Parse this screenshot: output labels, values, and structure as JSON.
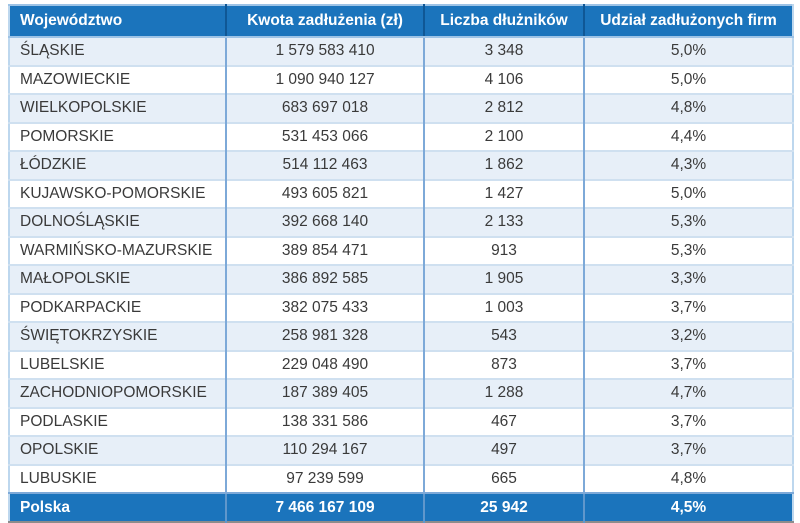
{
  "chart_data": {
    "type": "table",
    "columns": [
      {
        "label": "Województwo"
      },
      {
        "label": "Kwota zadłużenia (zł)"
      },
      {
        "label": "Liczba dłużników"
      },
      {
        "label": "Udział zadłużonych firm"
      }
    ],
    "rows": [
      {
        "region": "ŚLĄSKIE",
        "amount": "1 579 583 410",
        "debtors": "3 348",
        "share": "5,0%"
      },
      {
        "region": "MAZOWIECKIE",
        "amount": "1 090 940 127",
        "debtors": "4 106",
        "share": "5,0%"
      },
      {
        "region": "WIELKOPOLSKIE",
        "amount": "683 697 018",
        "debtors": "2 812",
        "share": "4,8%"
      },
      {
        "region": "POMORSKIE",
        "amount": "531 453 066",
        "debtors": "2 100",
        "share": "4,4%"
      },
      {
        "region": "ŁÓDZKIE",
        "amount": "514 112 463",
        "debtors": "1 862",
        "share": "4,3%"
      },
      {
        "region": "KUJAWSKO-POMORSKIE",
        "amount": "493 605 821",
        "debtors": "1 427",
        "share": "5,0%"
      },
      {
        "region": "DOLNOŚLĄSKIE",
        "amount": "392 668 140",
        "debtors": "2 133",
        "share": "5,3%"
      },
      {
        "region": "WARMIŃSKO-MAZURSKIE",
        "amount": "389 854 471",
        "debtors": "913",
        "share": "5,3%"
      },
      {
        "region": "MAŁOPOLSKIE",
        "amount": "386 892 585",
        "debtors": "1 905",
        "share": "3,3%"
      },
      {
        "region": "PODKARPACKIE",
        "amount": "382 075 433",
        "debtors": "1 003",
        "share": "3,7%"
      },
      {
        "region": "ŚWIĘTOKRZYSKIE",
        "amount": "258 981 328",
        "debtors": "543",
        "share": "3,2%"
      },
      {
        "region": "LUBELSKIE",
        "amount": "229 048 490",
        "debtors": "873",
        "share": "3,7%"
      },
      {
        "region": "ZACHODNIOPOMORSKIE",
        "amount": "187 389 405",
        "debtors": "1 288",
        "share": "4,7%"
      },
      {
        "region": "PODLASKIE",
        "amount": "138 331 586",
        "debtors": "467",
        "share": "3,7%"
      },
      {
        "region": "OPOLSKIE",
        "amount": "110 294 167",
        "debtors": "497",
        "share": "3,7%"
      },
      {
        "region": "LUBUSKIE",
        "amount": "97 239 599",
        "debtors": "665",
        "share": "4,8%"
      }
    ],
    "footer": {
      "region": "Polska",
      "amount": "7 466 167 109",
      "debtors": "25 942",
      "share": "4,5%"
    },
    "layout_hints": {
      "striped_rows": "odd rows tinted",
      "stripe_color": "#e7eff8",
      "header_color": "#1b74bc",
      "footer_color": "#1b74bc",
      "header_text_color": "#ffffff",
      "body_text_color": "#3a3a3a"
    }
  }
}
